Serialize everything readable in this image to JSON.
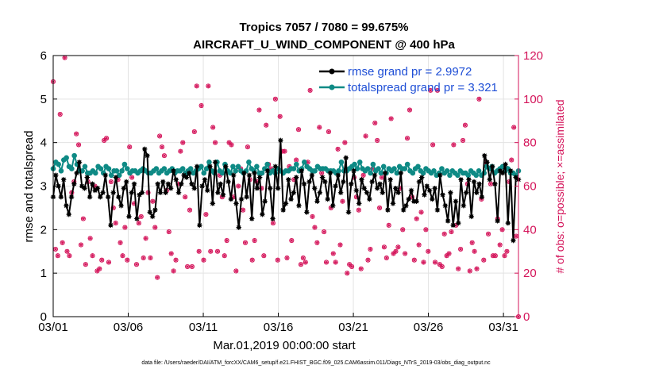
{
  "chart_data": {
    "type": "line",
    "title": "Tropics 7057 / 7080 = 99.675%",
    "subtitle": "AIRCRAFT_U_WIND_COMPONENT @ 400 hPa",
    "xlabel": "Mar.01,2019 00:00:00 start",
    "ylabel": "rmse and totalspread",
    "ylabel_right": "# of obs: o=possible; ×=assimilated",
    "footnote": "data file: /Users/raeder/DAI/ATM_forcXX/CAM6_setup/f.e21.FHIST_BGC.f09_025.CAM6assim.011/Diags_NTrS_2019-03/obs_diag_output.nc",
    "xlim": [
      1,
      32
    ],
    "ylim": [
      0,
      6
    ],
    "ylim_right": [
      0,
      120
    ],
    "x_ticks": [
      1,
      6,
      11,
      16,
      21,
      26,
      31
    ],
    "x_tick_labels": [
      "03/01",
      "03/06",
      "03/11",
      "03/16",
      "03/21",
      "03/26",
      "03/31"
    ],
    "y_ticks": [
      "0",
      "1",
      "2",
      "3",
      "4",
      "5",
      "6"
    ],
    "y_ticks_right": [
      "0",
      "20",
      "40",
      "60",
      "80",
      "100",
      "120"
    ],
    "grid": true,
    "legend_position": "top-right",
    "colors": {
      "rmse": "#000000",
      "spread": "#0e8a85",
      "obs": "#d4145a",
      "legend_text": "#1f4fd6"
    },
    "series": [
      {
        "name": "rmse grand pr = 2.9972",
        "values": [
          2.75,
          3.25,
          3.0,
          2.75,
          3.15,
          2.55,
          2.35,
          2.75,
          3.05,
          3.3,
          3.55,
          3.0,
          2.95,
          3.2,
          2.75,
          3.05,
          2.9,
          2.95,
          2.75,
          2.85,
          3.25,
          2.75,
          2.1,
          2.85,
          3.2,
          2.75,
          2.55,
          2.95,
          3.1,
          2.3,
          2.85,
          3.05,
          2.25,
          2.8,
          2.85,
          3.85,
          3.7,
          2.4,
          2.3,
          2.45,
          3.05,
          2.85,
          3.1,
          2.85,
          3.05,
          2.95,
          3.35,
          3.15,
          2.85,
          3.05,
          3.25,
          3.2,
          3.3,
          3.05,
          2.95,
          3.45,
          2.1,
          3.0,
          3.15,
          2.9,
          3.45,
          2.6,
          3.55,
          2.85,
          3.05,
          2.8,
          3.45,
          3.1,
          2.7,
          3.25,
          2.6,
          2.05,
          2.7,
          3.3,
          2.75,
          3.25,
          2.25,
          3.3,
          2.95,
          3.2,
          2.35,
          2.65,
          3.35,
          2.95,
          2.25,
          3.45,
          2.95,
          4.05,
          2.45,
          2.6,
          3.15,
          2.7,
          2.85,
          3.2,
          2.55,
          3.35,
          3.05,
          2.4,
          3.1,
          3.25,
          2.95,
          2.65,
          2.85,
          3.2,
          3.1,
          2.7,
          3.3,
          2.55,
          3.0,
          3.25,
          2.85,
          3.1,
          3.65,
          2.4,
          3.05,
          3.35,
          2.9,
          2.6,
          3.15,
          2.95,
          2.85,
          2.7,
          3.1,
          3.25,
          2.95,
          3.05,
          2.85,
          3.3,
          2.45,
          3.15,
          2.6,
          2.95,
          2.85,
          3.3,
          2.45,
          2.55,
          2.7,
          2.9,
          2.65,
          2.65,
          3.1,
          3.2,
          2.8,
          3.0,
          2.9,
          2.7,
          2.95,
          2.45,
          3.25,
          2.8,
          2.55,
          2.2,
          2.85,
          2.1,
          2.65,
          2.15,
          3.15,
          2.55,
          2.85,
          3.15,
          2.3,
          3.1,
          2.85,
          3.05,
          2.75,
          3.7,
          3.55,
          3.15,
          3.45,
          3.05,
          2.2,
          3.35,
          3.3,
          3.5,
          2.15,
          3.35,
          1.75,
          3.2,
          3.15
        ],
        "marker": "asterisk"
      },
      {
        "name": "totalspread grand pr = 3.321",
        "values": [
          3.4,
          3.55,
          3.5,
          3.35,
          3.6,
          3.65,
          3.45,
          3.4,
          3.7,
          3.5,
          3.35,
          3.35,
          3.45,
          3.3,
          3.3,
          3.35,
          3.3,
          3.45,
          3.4,
          3.3,
          3.45,
          3.4,
          3.25,
          3.35,
          3.35,
          3.25,
          3.35,
          3.5,
          3.4,
          3.3,
          3.35,
          3.35,
          3.3,
          3.35,
          3.4,
          3.35,
          3.3,
          3.3,
          3.35,
          3.4,
          3.3,
          3.35,
          3.4,
          3.3,
          3.35,
          3.4,
          3.3,
          3.35,
          3.35,
          3.4,
          3.3,
          3.35,
          3.4,
          3.3,
          3.35,
          3.4,
          3.45,
          3.3,
          3.4,
          3.55,
          3.35,
          3.3,
          3.55,
          3.35,
          3.3,
          3.5,
          3.35,
          3.3,
          3.45,
          3.35,
          3.45,
          3.35,
          3.3,
          3.35,
          3.55,
          3.4,
          3.35,
          3.45,
          3.3,
          3.3,
          3.4,
          3.5,
          3.3,
          3.35,
          3.3,
          3.4,
          3.35,
          3.3,
          3.35,
          3.35,
          3.4,
          3.4,
          3.5,
          3.35,
          3.4,
          3.55,
          3.45,
          3.4,
          3.35,
          3.35,
          3.45,
          3.4,
          3.4,
          3.4,
          3.35,
          3.35,
          3.35,
          3.3,
          3.35,
          3.55,
          3.35,
          3.35,
          3.4,
          3.45,
          3.5,
          3.4,
          3.55,
          3.4,
          3.35,
          3.4,
          3.3,
          3.5,
          3.35,
          3.4,
          3.3,
          3.45,
          3.3,
          3.4,
          3.35,
          3.4,
          3.3,
          3.45,
          3.4,
          3.4,
          3.5,
          3.35,
          3.3,
          3.4,
          3.45,
          3.35,
          3.3,
          3.4,
          3.35,
          3.3,
          3.35,
          3.25,
          3.3,
          3.4,
          3.3,
          3.35,
          3.25,
          3.35,
          3.3,
          3.25,
          3.35,
          3.3,
          3.3,
          3.25,
          3.35,
          3.3,
          3.25,
          3.35,
          3.25,
          3.3,
          3.45,
          3.4,
          3.45,
          3.3,
          3.35,
          3.4,
          3.45,
          3.35,
          3.4,
          3.3,
          3.3,
          3.25,
          3.35
        ],
        "marker": "filled-circle"
      }
    ],
    "obs_possible": [
      108,
      31,
      28,
      93,
      34,
      119,
      30,
      28,
      57,
      62,
      84,
      79,
      33,
      45,
      24,
      62,
      36,
      28,
      60,
      21,
      22,
      26,
      81,
      82,
      25,
      62,
      50,
      43,
      63,
      34,
      28,
      41,
      26,
      78,
      64,
      52,
      24,
      43,
      46,
      27,
      36,
      57,
      27,
      53,
      41,
      18,
      83,
      78,
      74,
      58,
      39,
      29,
      21,
      26,
      61,
      76,
      80,
      55,
      23,
      49,
      23,
      85,
      106,
      30,
      97,
      26,
      47,
      106,
      30,
      87,
      80,
      30,
      65,
      55,
      28,
      35,
      80,
      79,
      55,
      21,
      60,
      68,
      49,
      34,
      78,
      63,
      26,
      35,
      62,
      95,
      59,
      28,
      88,
      70,
      68,
      43,
      100,
      26,
      92,
      76,
      76,
      27,
      69,
      35,
      63,
      72,
      86,
      24,
      27,
      25,
      71,
      104,
      46,
      41,
      34,
      87,
      66,
      39,
      25,
      85,
      50,
      29,
      25,
      77,
      33,
      53,
      80,
      20,
      24,
      23,
      64,
      55,
      49,
      22,
      65,
      83,
      26,
      31,
      68,
      89,
      81,
      50,
      64,
      32,
      27,
      42,
      91,
      29,
      30,
      32,
      59,
      40,
      29,
      82,
      95,
      55,
      26,
      45,
      33,
      48,
      25,
      40,
      30,
      104,
      79,
      25,
      104,
      24,
      23,
      38,
      28,
      29,
      39,
      79,
      42,
      22,
      31,
      81,
      88,
      61,
      21,
      34,
      30,
      22,
      100,
      54,
      26,
      71,
      38,
      61,
      28,
      28,
      45,
      33,
      40,
      28,
      30,
      62,
      72,
      87,
      37,
      0
    ],
    "obs_assimilated": [
      108,
      31,
      28,
      93,
      34,
      119,
      30,
      28,
      57,
      62,
      84,
      79,
      33,
      45,
      24,
      62,
      36,
      28,
      60,
      21,
      22,
      26,
      81,
      82,
      25,
      62,
      50,
      43,
      63,
      34,
      28,
      41,
      26,
      78,
      64,
      52,
      24,
      43,
      46,
      27,
      36,
      57,
      27,
      53,
      41,
      18,
      83,
      78,
      74,
      58,
      39,
      29,
      21,
      26,
      61,
      76,
      80,
      55,
      23,
      49,
      23,
      85,
      106,
      30,
      97,
      26,
      47,
      106,
      30,
      87,
      80,
      30,
      65,
      55,
      28,
      35,
      80,
      79,
      55,
      21,
      60,
      68,
      49,
      34,
      78,
      63,
      26,
      35,
      62,
      95,
      59,
      28,
      88,
      70,
      68,
      43,
      100,
      26,
      92,
      76,
      76,
      27,
      69,
      35,
      63,
      72,
      86,
      24,
      27,
      25,
      71,
      104,
      46,
      41,
      34,
      87,
      66,
      39,
      25,
      85,
      50,
      29,
      25,
      77,
      33,
      53,
      80,
      20,
      24,
      23,
      64,
      55,
      49,
      22,
      65,
      83,
      26,
      31,
      68,
      89,
      81,
      50,
      64,
      32,
      27,
      42,
      91,
      29,
      30,
      32,
      59,
      40,
      29,
      82,
      95,
      55,
      26,
      45,
      33,
      48,
      25,
      40,
      30,
      104,
      79,
      25,
      104,
      24,
      23,
      38,
      28,
      29,
      39,
      79,
      42,
      22,
      31,
      81,
      88,
      61,
      21,
      34,
      30,
      22,
      100,
      54,
      26,
      71,
      38,
      61,
      28,
      28,
      45,
      33,
      40,
      28,
      30,
      62,
      72,
      87,
      37,
      0
    ]
  }
}
